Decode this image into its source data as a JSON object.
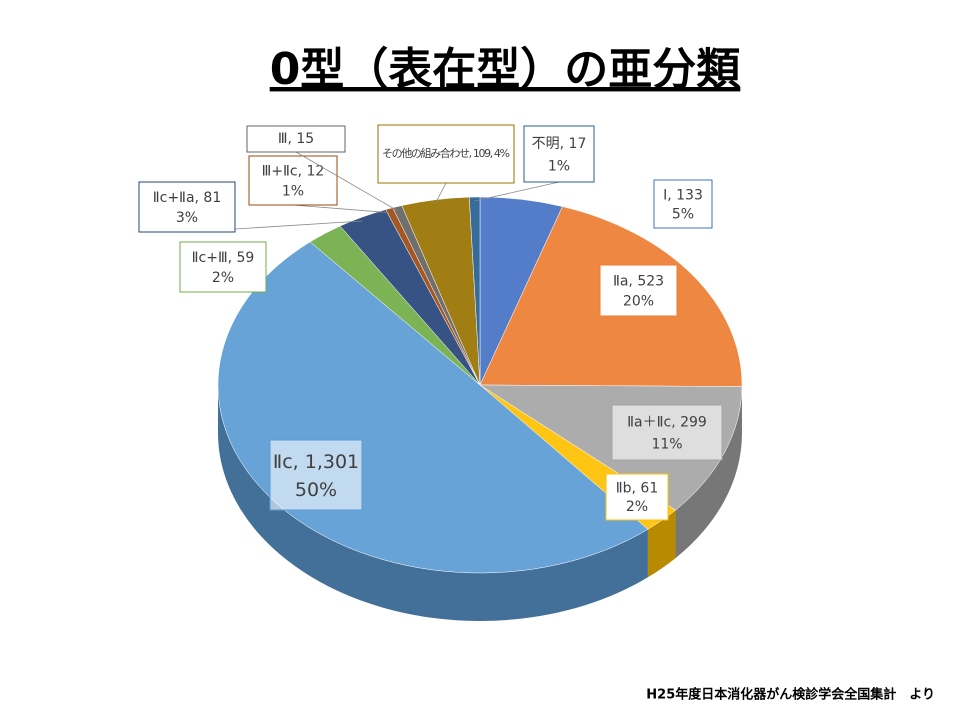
{
  "chart_data": {
    "type": "pie",
    "title": "0型（表在型）の亜分類",
    "labels": [
      "Ⅰ, 133",
      "Ⅱa, 523",
      "Ⅱa＋Ⅱc, 299",
      "Ⅱb, 61",
      "Ⅱc, 1,301",
      "Ⅱc+Ⅲ, 59",
      "Ⅱc+Ⅱa, 81",
      "Ⅲ+Ⅱc, 12",
      "Ⅲ, 15",
      "その他の組み合わせ, 109, 4%",
      "不明, 17"
    ],
    "values": [
      133,
      523,
      299,
      61,
      1301,
      59,
      81,
      12,
      15,
      109,
      17
    ],
    "percent_labels": [
      "5%",
      "20%",
      "11%",
      "2%",
      "50%",
      "2%",
      "3%",
      "1%",
      null,
      null,
      "1%"
    ],
    "colors": [
      "#4472c4",
      "#ed7d31",
      "#a5a5a5",
      "#ffc000",
      "#5b9bd5",
      "#70ad47",
      "#264478",
      "#9e480e",
      "#636363",
      "#997300",
      "#255e91"
    ],
    "source": "H25年度日本消化器がん検診学会全国集計　より"
  }
}
